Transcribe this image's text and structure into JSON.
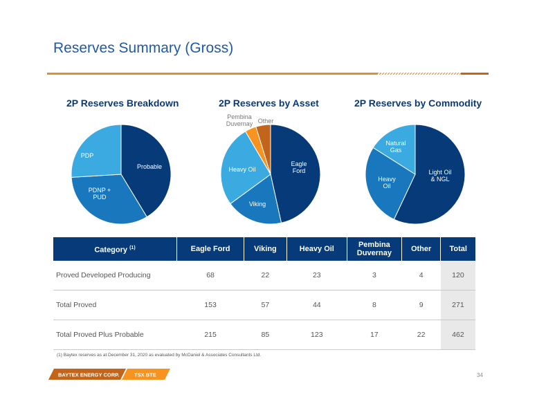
{
  "page": {
    "title": "Reserves Summary (Gross)",
    "page_number": "34"
  },
  "colors": {
    "navy": "#063a78",
    "blue": "#1877bd",
    "light_blue": "#3aaae1",
    "orange": "#f7931e",
    "brown": "#c2651b",
    "rule_orange": "#e0912c"
  },
  "chart_data": [
    {
      "type": "pie",
      "title": "2P Reserves Breakdown",
      "slices": [
        {
          "label": "Probable",
          "value": 191
        },
        {
          "label": "PDNP +\nPUD",
          "value": 151
        },
        {
          "label": "PDP",
          "value": 120
        }
      ]
    },
    {
      "type": "pie",
      "title": "2P Reserves by Asset",
      "slices": [
        {
          "label": "Eagle\nFord",
          "value": 215
        },
        {
          "label": "Viking",
          "value": 85
        },
        {
          "label": "Heavy Oil",
          "value": 123
        },
        {
          "label": "Pembina\nDuvernay",
          "value": 17
        },
        {
          "label": "Other",
          "value": 22
        }
      ]
    },
    {
      "type": "pie",
      "title": "2P Reserves by Commodity",
      "slices": [
        {
          "label": "Light Oil\n& NGL",
          "value": 57
        },
        {
          "label": "Heavy\nOil",
          "value": 27
        },
        {
          "label": "Natural\nGas",
          "value": 16
        }
      ]
    }
  ],
  "table": {
    "headers": [
      {
        "label": "Category",
        "sup": "(1)"
      },
      {
        "label": "Eagle Ford"
      },
      {
        "label": "Viking"
      },
      {
        "label": "Heavy Oil"
      },
      {
        "label": "Pembina Duvernay"
      },
      {
        "label": "Other"
      },
      {
        "label": "Total"
      }
    ],
    "rows": [
      [
        "Proved Developed Producing",
        "68",
        "22",
        "23",
        "3",
        "4",
        "120"
      ],
      [
        "Total Proved",
        "153",
        "57",
        "44",
        "8",
        "9",
        "271"
      ],
      [
        "Total Proved Plus Probable",
        "215",
        "85",
        "123",
        "17",
        "22",
        "462"
      ]
    ]
  },
  "footnote": "(1)     Baytex reserves as at December 31, 2020 as evaluated by McDaniel & Associates Consultants Ltd.",
  "footer": {
    "company": "BAYTEX ENERGY CORP.",
    "ticker": "TSX BTE"
  }
}
